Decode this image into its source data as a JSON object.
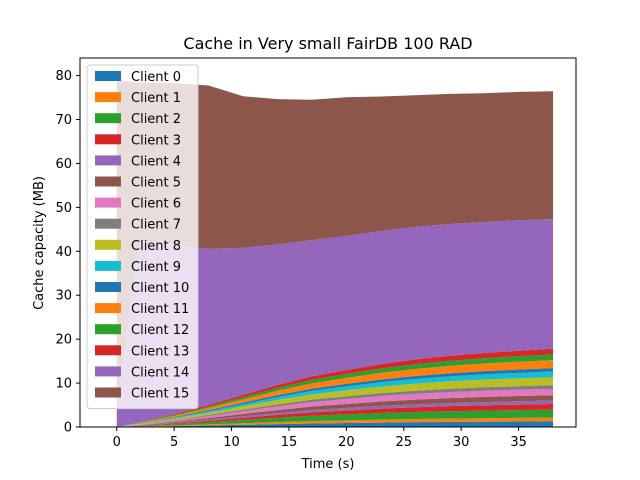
{
  "chart_data": {
    "type": "area",
    "stacked": true,
    "title": "Cache in Very small FairDB 100 RAD",
    "xlabel": "Time (s)",
    "ylabel": "Cache capacity (MB)",
    "xlim": [
      -3.2,
      40
    ],
    "ylim": [
      0,
      84
    ],
    "xticks": [
      0,
      5,
      10,
      15,
      20,
      25,
      30,
      35
    ],
    "yticks": [
      0,
      10,
      20,
      30,
      40,
      50,
      60,
      70,
      80
    ],
    "legend_position": "upper-left",
    "x": [
      0,
      2,
      5,
      8,
      11,
      14,
      17,
      20,
      23,
      26,
      29,
      32,
      35,
      38
    ],
    "series": [
      {
        "name": "Client 0",
        "color": "#1f77b4",
        "values": [
          0,
          0.08,
          0.2,
          0.35,
          0.5,
          0.65,
          0.8,
          0.9,
          1.0,
          1.1,
          1.15,
          1.2,
          1.25,
          1.3
        ]
      },
      {
        "name": "Client 1",
        "color": "#ff7f0e",
        "values": [
          0,
          0.05,
          0.15,
          0.25,
          0.35,
          0.45,
          0.55,
          0.62,
          0.68,
          0.72,
          0.76,
          0.8,
          0.82,
          0.85
        ]
      },
      {
        "name": "Client 2",
        "color": "#2ca02c",
        "values": [
          0,
          0.1,
          0.3,
          0.5,
          0.75,
          1.0,
          1.2,
          1.35,
          1.5,
          1.6,
          1.68,
          1.74,
          1.78,
          1.8
        ]
      },
      {
        "name": "Client 3",
        "color": "#d62728",
        "values": [
          0,
          0.08,
          0.2,
          0.35,
          0.5,
          0.65,
          0.8,
          0.9,
          1.0,
          1.08,
          1.15,
          1.2,
          1.25,
          1.3
        ]
      },
      {
        "name": "Client 4",
        "color": "#9467bd",
        "values": [
          0,
          0.05,
          0.15,
          0.25,
          0.35,
          0.45,
          0.52,
          0.58,
          0.62,
          0.66,
          0.7,
          0.73,
          0.75,
          0.77
        ]
      },
      {
        "name": "Client 5",
        "color": "#8c564b",
        "values": [
          0,
          0.08,
          0.2,
          0.35,
          0.5,
          0.65,
          0.8,
          0.9,
          1.0,
          1.08,
          1.14,
          1.18,
          1.2,
          1.22
        ]
      },
      {
        "name": "Client 6",
        "color": "#e377c2",
        "values": [
          0,
          0.1,
          0.25,
          0.45,
          0.65,
          0.85,
          1.0,
          1.12,
          1.22,
          1.3,
          1.36,
          1.4,
          1.43,
          1.45
        ]
      },
      {
        "name": "Client 7",
        "color": "#7f7f7f",
        "values": [
          0,
          0.05,
          0.15,
          0.25,
          0.35,
          0.45,
          0.55,
          0.62,
          0.68,
          0.72,
          0.76,
          0.8,
          0.82,
          0.85
        ]
      },
      {
        "name": "Client 8",
        "color": "#bcbd22",
        "values": [
          0,
          0.1,
          0.3,
          0.5,
          0.75,
          1.0,
          1.2,
          1.35,
          1.5,
          1.6,
          1.68,
          1.74,
          1.78,
          1.8
        ]
      },
      {
        "name": "Client 9",
        "color": "#17becf",
        "values": [
          0,
          0.08,
          0.2,
          0.35,
          0.5,
          0.65,
          0.8,
          0.9,
          1.0,
          1.08,
          1.15,
          1.2,
          1.25,
          1.3
        ]
      },
      {
        "name": "Client 10",
        "color": "#1f77b4",
        "values": [
          0,
          0.05,
          0.15,
          0.25,
          0.35,
          0.45,
          0.52,
          0.58,
          0.62,
          0.66,
          0.7,
          0.73,
          0.75,
          0.77
        ]
      },
      {
        "name": "Client 11",
        "color": "#ff7f0e",
        "values": [
          0,
          0.1,
          0.3,
          0.5,
          0.75,
          1.0,
          1.2,
          1.35,
          1.5,
          1.6,
          1.68,
          1.74,
          1.78,
          1.8
        ]
      },
      {
        "name": "Client 12",
        "color": "#2ca02c",
        "values": [
          0,
          0.08,
          0.2,
          0.35,
          0.5,
          0.65,
          0.8,
          0.9,
          1.0,
          1.08,
          1.15,
          1.2,
          1.25,
          1.3
        ]
      },
      {
        "name": "Client 13",
        "color": "#d62728",
        "values": [
          0,
          0.08,
          0.2,
          0.35,
          0.5,
          0.65,
          0.8,
          0.9,
          1.0,
          1.08,
          1.15,
          1.2,
          1.25,
          1.3
        ]
      },
      {
        "name": "Client 14",
        "color": "#9467bd",
        "values": [
          5,
          41.3,
          38.5,
          35.5,
          33.5,
          32.0,
          31.0,
          30.5,
          30.3,
          30.2,
          30.0,
          29.8,
          29.7,
          29.5
        ]
      },
      {
        "name": "Client 15",
        "color": "#8c564b",
        "values": [
          74,
          36.0,
          36.8,
          37.2,
          34.5,
          33.1,
          31.95,
          31.6,
          30.61,
          29.96,
          29.61,
          29.32,
          29.22,
          29.11
        ]
      }
    ]
  }
}
